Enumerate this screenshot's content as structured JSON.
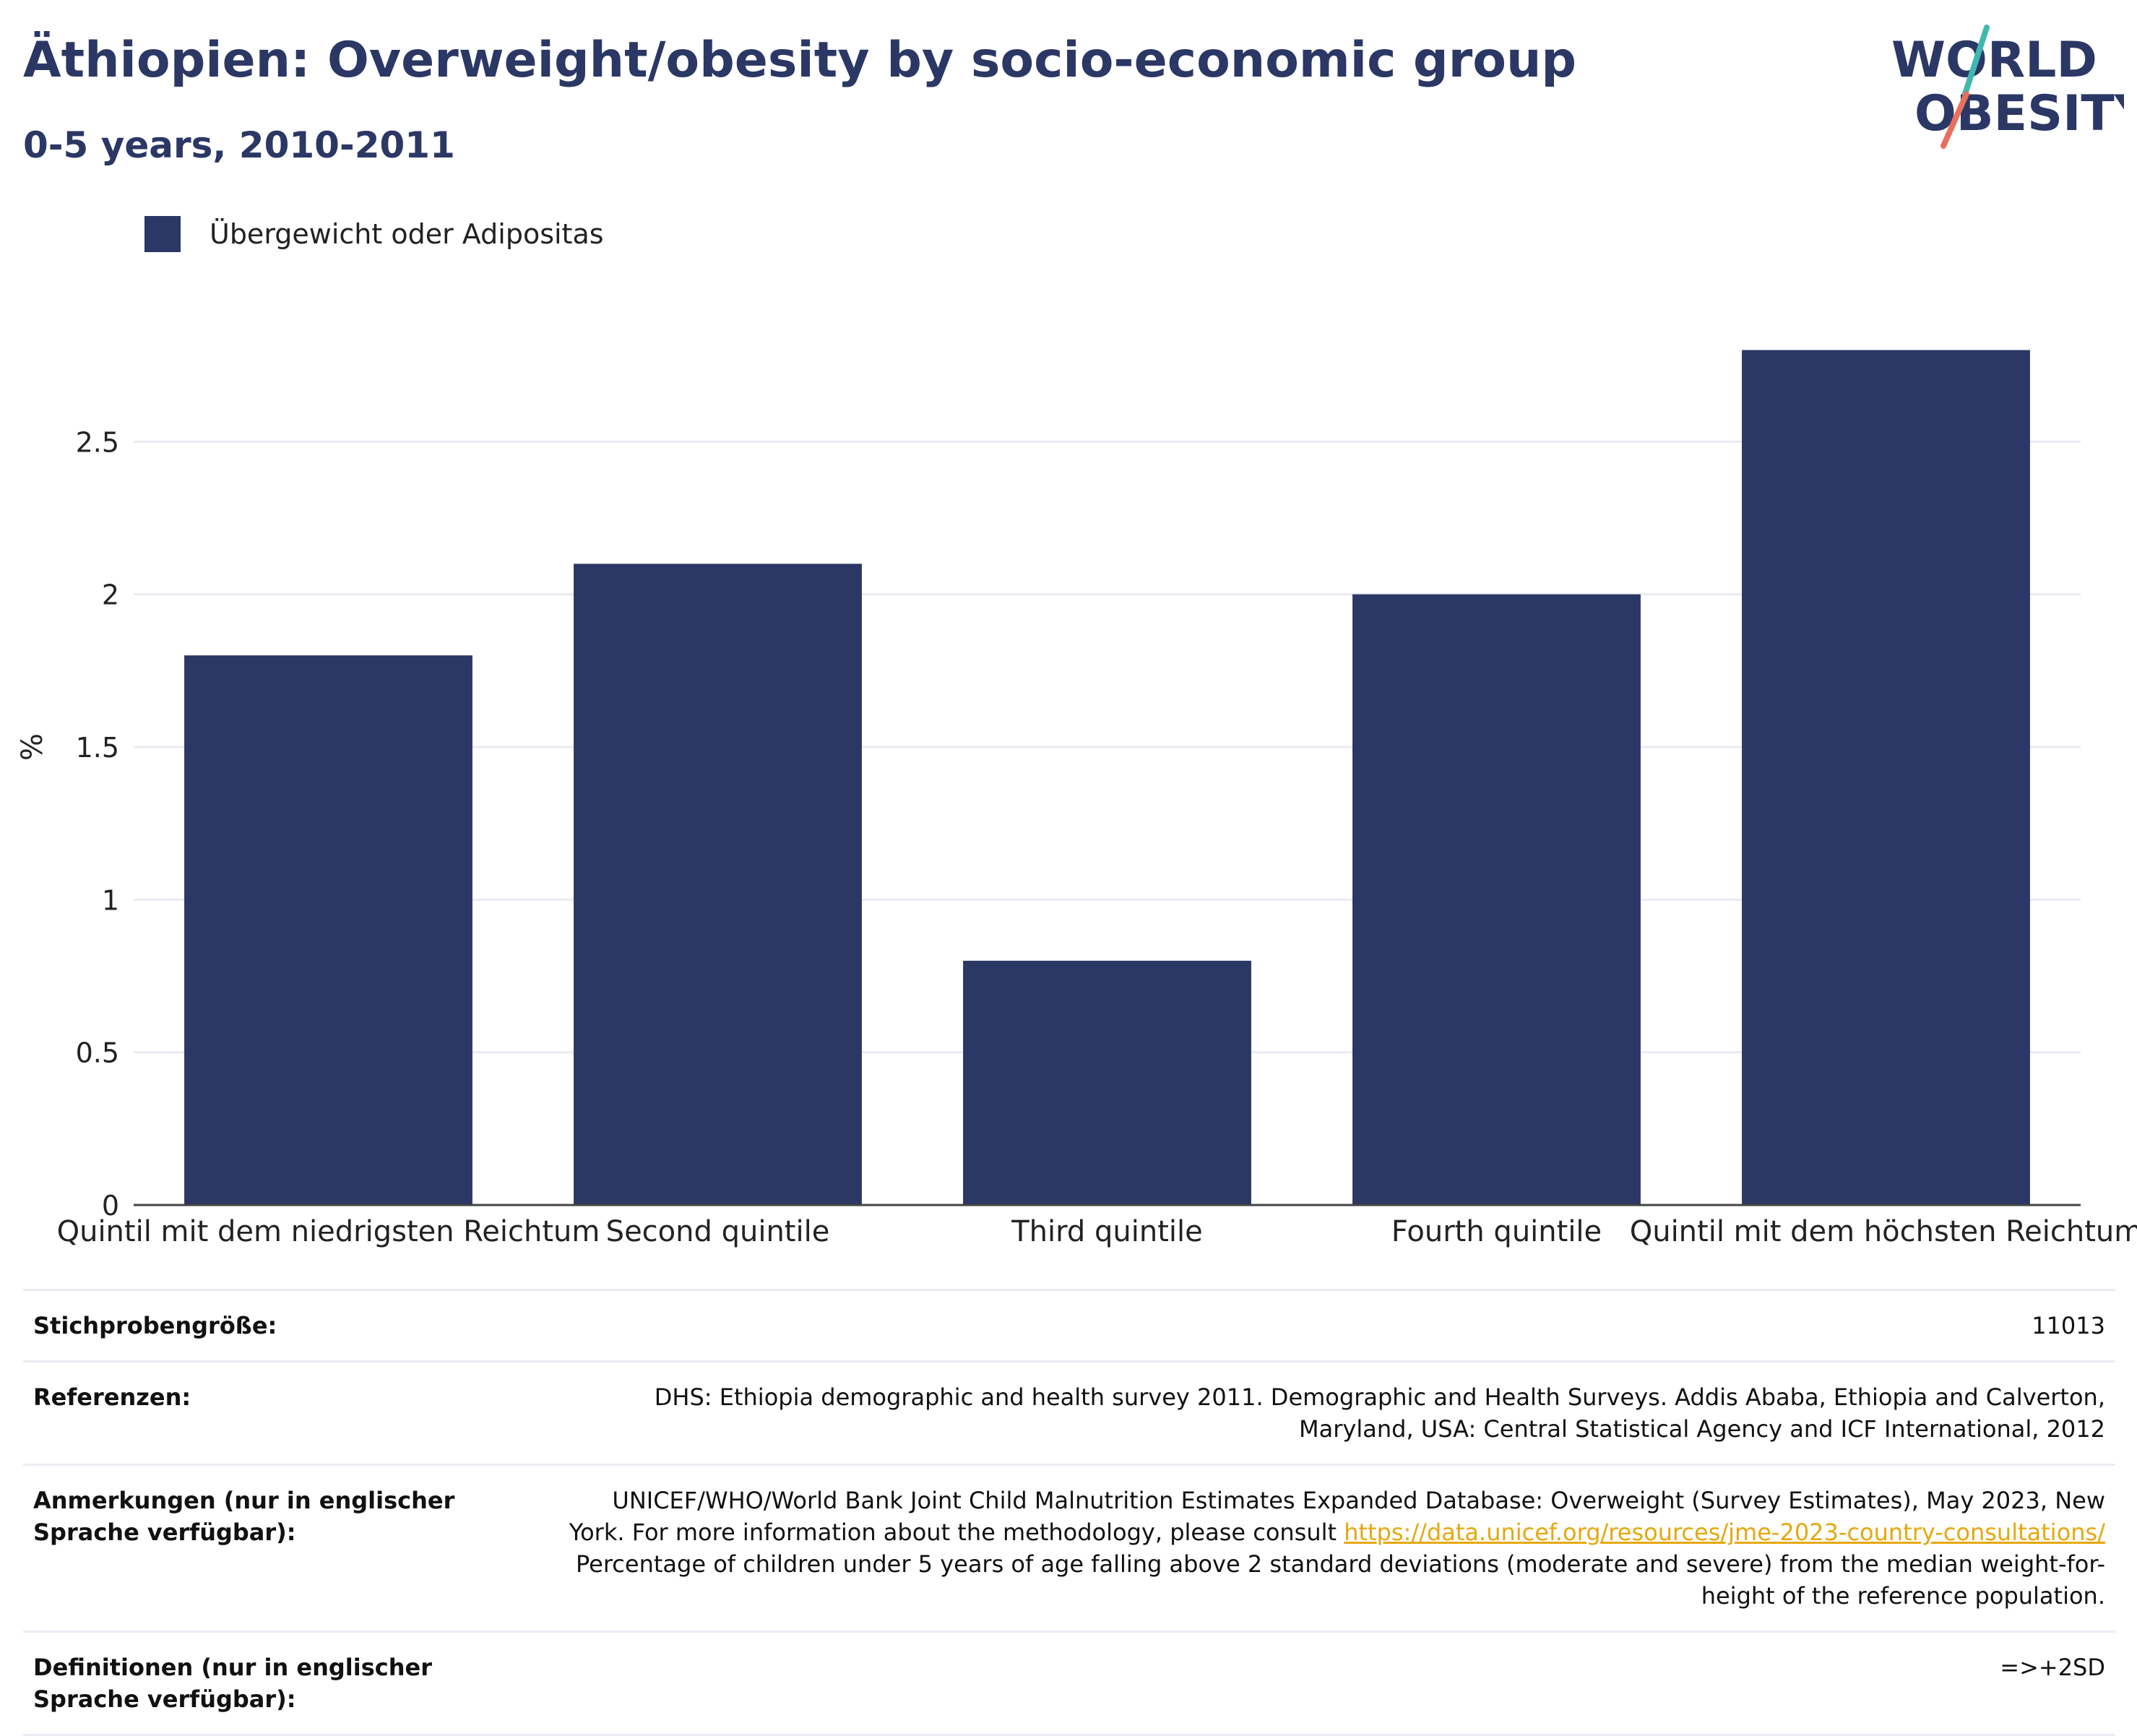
{
  "header": {
    "title": "Äthiopien: Overweight/obesity by socio-economic group",
    "subtitle": "0-5 years, 2010-2011"
  },
  "logo": {
    "line1": "WORLD",
    "line2": "OBESITY",
    "colors": {
      "navy": "#2b3764",
      "teal": "#3fb8b0",
      "coral": "#e8705e"
    }
  },
  "legend": {
    "label": "Übergewicht oder Adipositas",
    "color": "#2b3764"
  },
  "chart_data": {
    "type": "bar",
    "categories": [
      "Quintil mit dem niedrigsten Reichtum",
      "Second quintile",
      "Third quintile",
      "Fourth quintile",
      "Quintil mit dem höchsten Reichtum"
    ],
    "series": [
      {
        "name": "Übergewicht oder Adipositas",
        "values": [
          1.8,
          2.1,
          0.8,
          2.0,
          2.8
        ]
      }
    ],
    "ylabel": "%",
    "ylim": [
      0,
      3.0
    ],
    "yticks": [
      0,
      0.5,
      1,
      1.5,
      2,
      2.5
    ],
    "ytick_labels": [
      "0",
      "0.5",
      "1",
      "1.5",
      "2",
      "2.5"
    ],
    "grid": true,
    "legend_position": "top-left",
    "bar_color": "#2b3764"
  },
  "info": {
    "sample_label": "Stichprobengröße:",
    "sample_value": "11013",
    "references_label": "Referenzen:",
    "references_value": "DHS: Ethiopia demographic and health survey 2011. Demographic and Health Surveys. Addis Ababa, Ethiopia and Calverton, Maryland, USA: Central Statistical Agency and ICF International, 2012",
    "notes_label": "Anmerkungen (nur in englischer Sprache verfügbar):",
    "notes_text_1": "UNICEF/WHO/World Bank Joint Child Malnutrition Estimates Expanded Database: Overweight (Survey Estimates), May 2023, New York. For more information about the methodology, please consult",
    "notes_link": "https://data.unicef.org/resources/jme-2023-country-consultations/",
    "notes_text_2": "Percentage of children under 5 years of age falling above 2 standard deviations (moderate and severe) from the median weight-for-height of the reference population.",
    "definitions_label": "Definitionen (nur in englischer Sprache verfügbar):",
    "definitions_value": "=>+2SD"
  }
}
